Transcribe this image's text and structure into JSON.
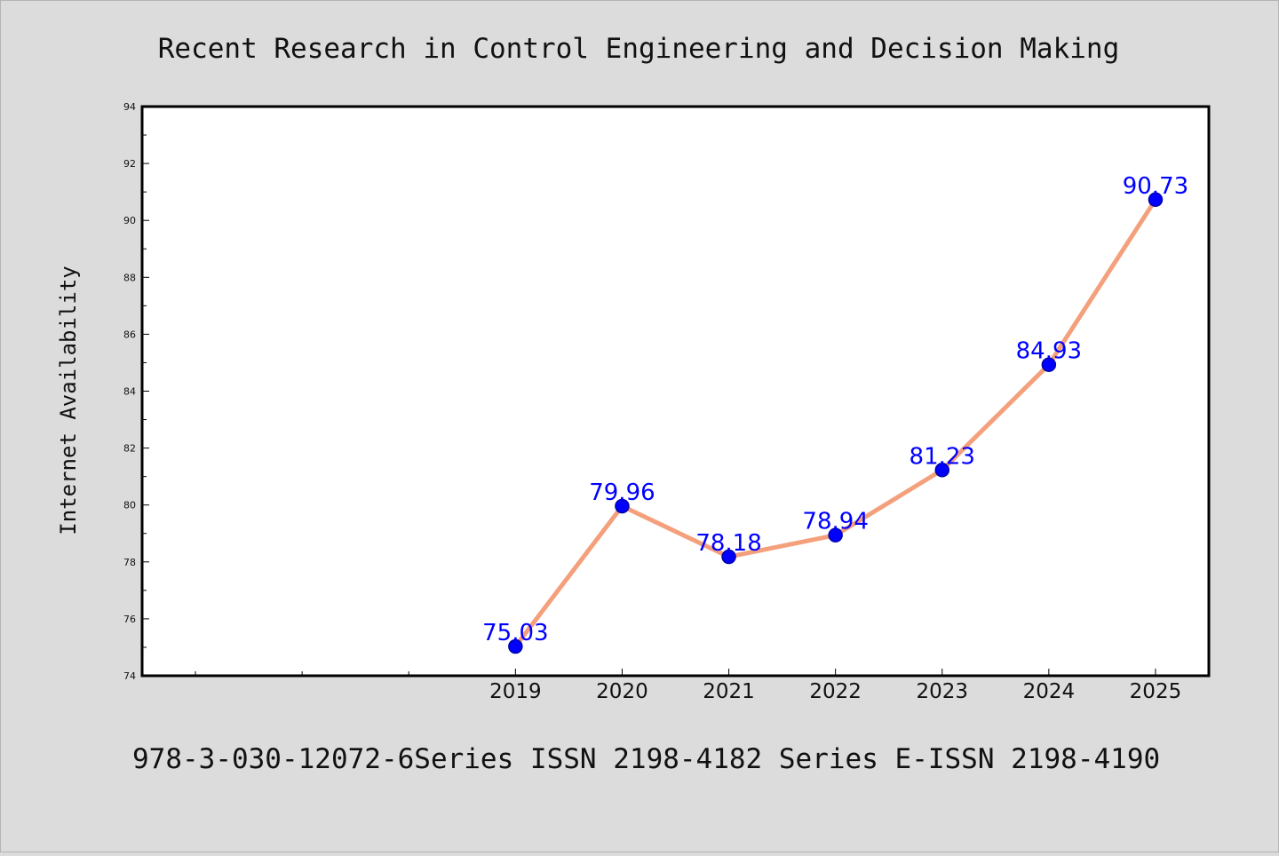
{
  "chart_data": {
    "type": "line",
    "title": "Recent Research in Control Engineering and Decision Making",
    "ylabel": "Internet Availability",
    "xlabel": "",
    "footer": "978-3-030-12072-6Series ISSN 2198-4182 Series E-ISSN 2198-4190",
    "x_range": [
      2015.5,
      2025.5
    ],
    "ylim": [
      74,
      94
    ],
    "y_ticks": [
      74,
      76,
      78,
      80,
      82,
      84,
      86,
      88,
      90,
      92,
      94
    ],
    "x_labeled_ticks": [
      2019,
      2020,
      2021,
      2022,
      2023,
      2024,
      2025
    ],
    "x_minor_ticks": [
      2016,
      2017,
      2018
    ],
    "grid": false,
    "legend": "none",
    "colors": {
      "line": "#f4a07c",
      "marker": "#0000ff",
      "marker_edge": "#0000aa",
      "label": "#0000ff",
      "plot_bg": "#ffffff",
      "page_bg": "#dcdcdc"
    },
    "series": [
      {
        "x": [
          2019,
          2020,
          2021,
          2022,
          2023,
          2024,
          2025
        ],
        "values": [
          75.03,
          79.96,
          78.18,
          78.94,
          81.23,
          84.93,
          90.73
        ],
        "labels": [
          "75.03",
          "79.96",
          "78.18",
          "78.94",
          "81.23",
          "84.93",
          "90.73"
        ]
      }
    ]
  }
}
